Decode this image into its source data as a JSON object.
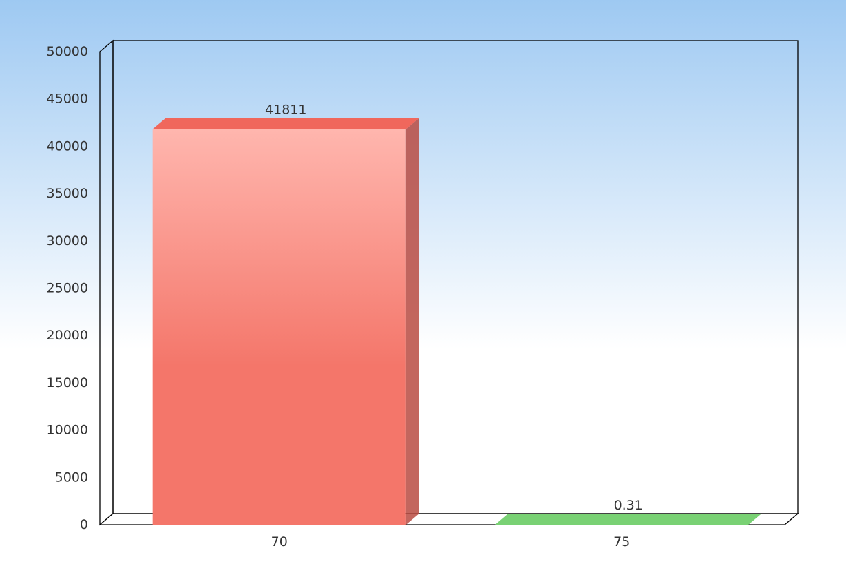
{
  "chart_data": {
    "type": "bar",
    "categories": [
      "70",
      "75"
    ],
    "values": [
      41811,
      0.31
    ],
    "data_labels": [
      "41811",
      "0.31"
    ],
    "bar_colors": [
      "#f4766a",
      "#7fd27a"
    ],
    "ylim": [
      0,
      50000
    ],
    "yticks": [
      0,
      5000,
      10000,
      15000,
      20000,
      25000,
      30000,
      35000,
      40000,
      45000,
      50000
    ],
    "title": "",
    "xlabel": "",
    "ylabel": "",
    "grid": false,
    "style": "3d",
    "background": [
      "#9ec9f2",
      "#ffffff"
    ]
  }
}
